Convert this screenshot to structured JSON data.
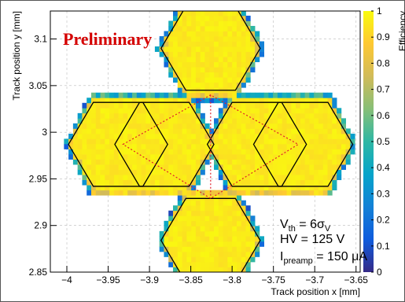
{
  "chart_data": {
    "type": "heatmap",
    "title": "",
    "xlabel": "Track position x [mm]",
    "ylabel": "Track position y [mm]",
    "zlabel": "Efficiency",
    "xlim": [
      -4.02,
      -3.645
    ],
    "ylim": [
      2.85,
      3.13
    ],
    "x_ticks": [
      -4,
      -3.95,
      -3.9,
      -3.85,
      -3.8,
      -3.75,
      -3.7,
      -3.65
    ],
    "x_tick_labels": [
      "−4",
      "−3.95",
      "−3.9",
      "−3.85",
      "−3.8",
      "−3.75",
      "−3.7",
      "−3.65"
    ],
    "y_ticks": [
      2.85,
      2.9,
      2.95,
      3,
      3.05,
      3.1
    ],
    "y_tick_labels": [
      "2.85",
      "2.9",
      "2.95",
      "3",
      "3.05",
      "3.1"
    ],
    "z_range": [
      0,
      1
    ],
    "z_ticks": [
      0,
      0.1,
      0.2,
      0.3,
      0.4,
      0.5,
      0.6,
      0.7,
      0.8,
      0.9,
      1
    ],
    "z_tick_labels": [
      "0",
      "0.1",
      "0.2",
      "0.3",
      "0.4",
      "0.5",
      "0.6",
      "0.7",
      "0.8",
      "0.9",
      "1"
    ],
    "grid": true,
    "palette": [
      "#352a87",
      "#0f5cdd",
      "#1481d6",
      "#06a4ca",
      "#2eb7a4",
      "#87bf77",
      "#d1bb59",
      "#fec832",
      "#f9fb0e"
    ],
    "interior_efficiency": 0.99,
    "edge_efficiency": 0.5,
    "hexagons": [
      {
        "center": [
          -3.826,
          3.09
        ],
        "circumradius": 0.06
      },
      {
        "center": [
          -3.882,
          2.987
        ],
        "circumradius": 0.06
      },
      {
        "center": [
          -3.77,
          2.987
        ],
        "circumradius": 0.06
      },
      {
        "center": [
          -3.826,
          2.884
        ],
        "circumradius": 0.06
      },
      {
        "center": [
          -3.938,
          2.987
        ],
        "circumradius": 0.06
      },
      {
        "center": [
          -3.714,
          2.987
        ],
        "circumradius": 0.06
      }
    ],
    "annotations": {
      "preliminary": "Preliminary",
      "vth_main": "V",
      "vth_sub": "th",
      "vth_eq": " = 6σ",
      "vth_sub2": "V",
      "hv": "HV = 125 V",
      "ipre_main": "I",
      "ipre_sub": "preamp",
      "ipre_eq": " = 150 μA"
    },
    "colors": {
      "hex_outline": "#000000",
      "dotted_lines": "#e0202a",
      "grid": "#bbbbbb",
      "preliminary": "#d40000"
    }
  }
}
